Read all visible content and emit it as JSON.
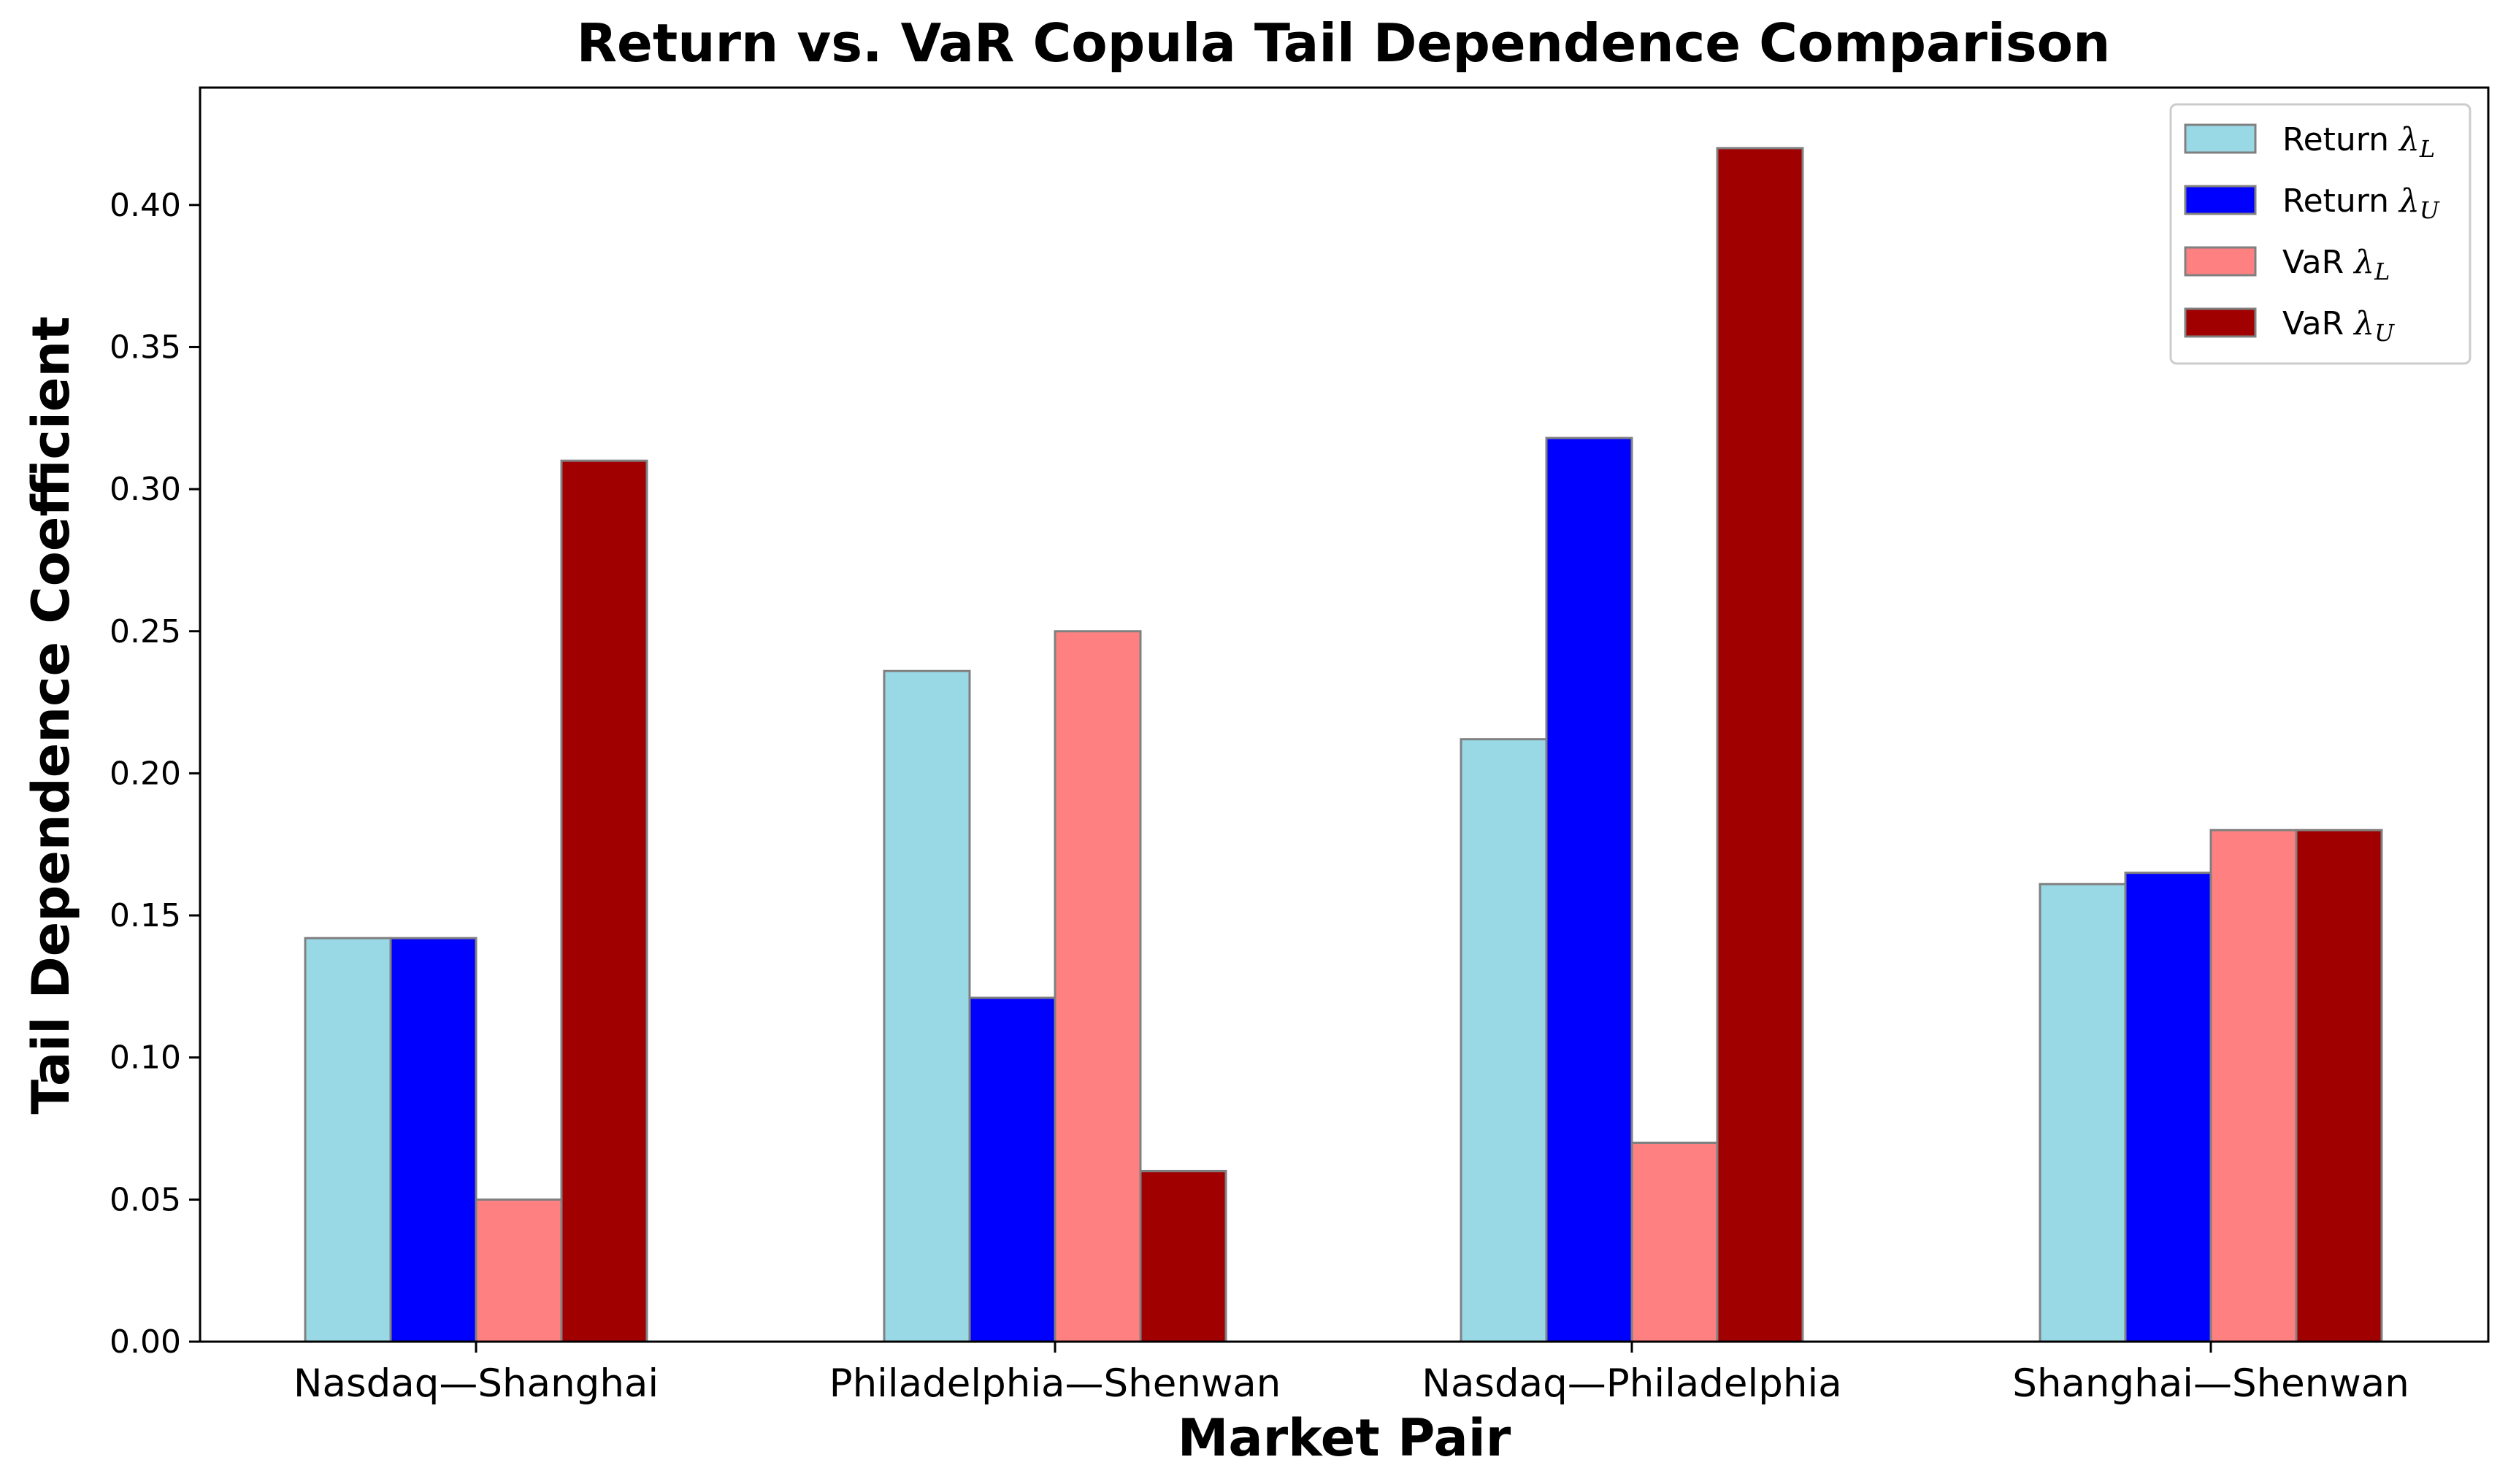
{
  "chart_data": {
    "type": "bar",
    "title": "Return vs. VaR Copula Tail Dependence Comparison",
    "xlabel": "Market Pair",
    "ylabel": "Tail Dependence Coefficient",
    "categories": [
      "Nasdaq—Shanghai",
      "Philadelphia—Shenwan",
      "Nasdaq—Philadelphia",
      "Shanghai—Shenwan"
    ],
    "ylim": [
      0,
      0.44
    ],
    "yticks": [
      0.0,
      0.05,
      0.1,
      0.15,
      0.2,
      0.25,
      0.3,
      0.35,
      0.4
    ],
    "ytick_labels": [
      "0.00",
      "0.05",
      "0.10",
      "0.15",
      "0.20",
      "0.25",
      "0.30",
      "0.35",
      "0.40"
    ],
    "grid": false,
    "legend_position": "top-right",
    "series": [
      {
        "name": "Return",
        "subscript": "L",
        "color": "#99D9E6",
        "values": [
          0.142,
          0.236,
          0.212,
          0.161
        ]
      },
      {
        "name": "Return",
        "subscript": "U",
        "color": "#0000FF",
        "values": [
          0.142,
          0.121,
          0.318,
          0.165
        ]
      },
      {
        "name": "VaR",
        "subscript": "L",
        "color": "#FF8080",
        "values": [
          0.05,
          0.25,
          0.07,
          0.18
        ]
      },
      {
        "name": "VaR",
        "subscript": "U",
        "color": "#A00000",
        "values": [
          0.31,
          0.06,
          0.42,
          0.18
        ]
      }
    ],
    "legend_symbol": "λ"
  }
}
